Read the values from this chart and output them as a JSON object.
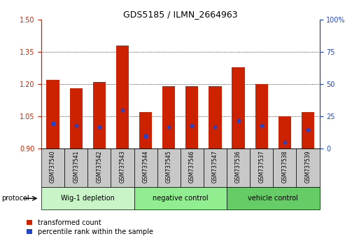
{
  "title": "GDS5185 / ILMN_2664963",
  "samples": [
    "GSM737540",
    "GSM737541",
    "GSM737542",
    "GSM737543",
    "GSM737544",
    "GSM737545",
    "GSM737546",
    "GSM737547",
    "GSM737536",
    "GSM737537",
    "GSM737538",
    "GSM737539"
  ],
  "groups": [
    {
      "name": "Wig-1 depletion",
      "indices": [
        0,
        1,
        2,
        3
      ]
    },
    {
      "name": "negative control",
      "indices": [
        4,
        5,
        6,
        7
      ]
    },
    {
      "name": "vehicle control",
      "indices": [
        8,
        9,
        10,
        11
      ]
    }
  ],
  "group_colors": [
    "#c8f4c8",
    "#90ee90",
    "#66cc66"
  ],
  "bar_bottom": 0.9,
  "transformed_count": [
    1.22,
    1.18,
    1.21,
    1.38,
    1.07,
    1.19,
    1.19,
    1.19,
    1.28,
    1.2,
    1.05,
    1.07
  ],
  "percentile_rank": [
    20,
    18,
    17,
    30,
    10,
    17,
    18,
    17,
    22,
    18,
    5,
    15
  ],
  "ylim_left": [
    0.9,
    1.5
  ],
  "ylim_right": [
    0,
    100
  ],
  "yticks_left": [
    0.9,
    1.05,
    1.2,
    1.35,
    1.5
  ],
  "yticks_right": [
    0,
    25,
    50,
    75,
    100
  ],
  "bar_color": "#cc2200",
  "blue_color": "#2244cc",
  "bar_width": 0.55,
  "label_transformed": "transformed count",
  "label_percentile": "percentile rank within the sample",
  "protocol_label": "protocol",
  "sample_box_color": "#c8c8c8",
  "title_fontsize": 9,
  "tick_fontsize": 7,
  "sample_fontsize": 5.5,
  "group_fontsize": 7,
  "legend_fontsize": 7
}
